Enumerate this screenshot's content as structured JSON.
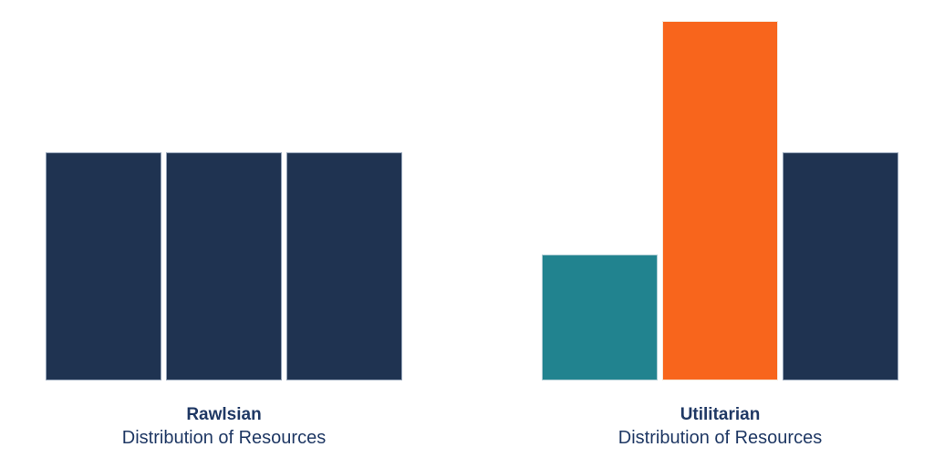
{
  "page": {
    "background_color": "#FFFFFF",
    "text_color": "#1F3864"
  },
  "chart_data": [
    {
      "type": "bar",
      "title": "Rawlsian",
      "subtitle": "Distribution of Resources",
      "values": [
        4,
        4,
        4
      ],
      "ylim": [
        0,
        6.3
      ],
      "bar_colors": [
        "#1F3351",
        "#1F3351",
        "#1F3351"
      ],
      "bar_border_colors": [
        "#94A3B8",
        "#94A3B8",
        "#94A3B8"
      ],
      "axes_visible": false,
      "grid": false,
      "legend_position": "none",
      "bars_labeled": false
    },
    {
      "type": "bar",
      "title": "Utilitarian",
      "subtitle": "Distribution of Resources",
      "values": [
        2.2,
        6.3,
        4
      ],
      "ylim": [
        0,
        6.3
      ],
      "bar_colors": [
        "#21838F",
        "#F8651C",
        "#1F3351"
      ],
      "bar_border_colors": [
        "#AFCDD4",
        "#F6E6D6",
        "#94A3B8"
      ],
      "axes_visible": false,
      "grid": false,
      "legend_position": "none",
      "bars_labeled": false
    }
  ]
}
